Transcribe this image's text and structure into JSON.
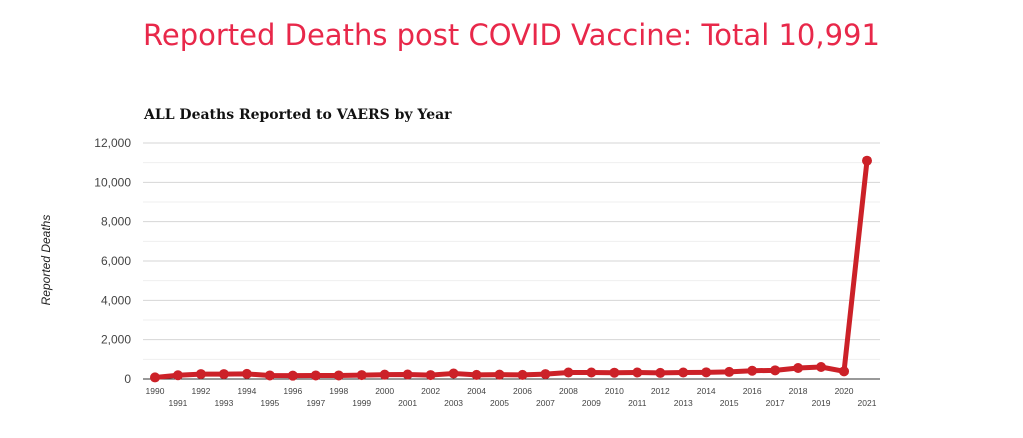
{
  "title": "Reported Deaths post COVID Vaccine: Total 10,991",
  "chart_data": {
    "type": "line",
    "title": "ALL Deaths Reported to VAERS by Year",
    "xlabel": "",
    "ylabel": "Reported Deaths",
    "ylim": [
      0,
      12000
    ],
    "yticks": [
      "0",
      "2,000",
      "4,000",
      "6,000",
      "8,000",
      "10,000",
      "12,000"
    ],
    "grid": true,
    "color": "#cc2128",
    "x": [
      "1990",
      "1991",
      "1992",
      "1993",
      "1994",
      "1995",
      "1996",
      "1997",
      "1998",
      "1999",
      "2000",
      "2001",
      "2002",
      "2003",
      "2004",
      "2005",
      "2006",
      "2007",
      "2008",
      "2009",
      "2010",
      "2011",
      "2012",
      "2013",
      "2014",
      "2015",
      "2016",
      "2017",
      "2018",
      "2019",
      "2020",
      "2021"
    ],
    "values": [
      80,
      190,
      250,
      250,
      260,
      180,
      170,
      180,
      180,
      200,
      220,
      230,
      200,
      280,
      210,
      220,
      210,
      250,
      330,
      330,
      320,
      330,
      310,
      330,
      340,
      360,
      420,
      440,
      560,
      610,
      390,
      11100
    ]
  }
}
